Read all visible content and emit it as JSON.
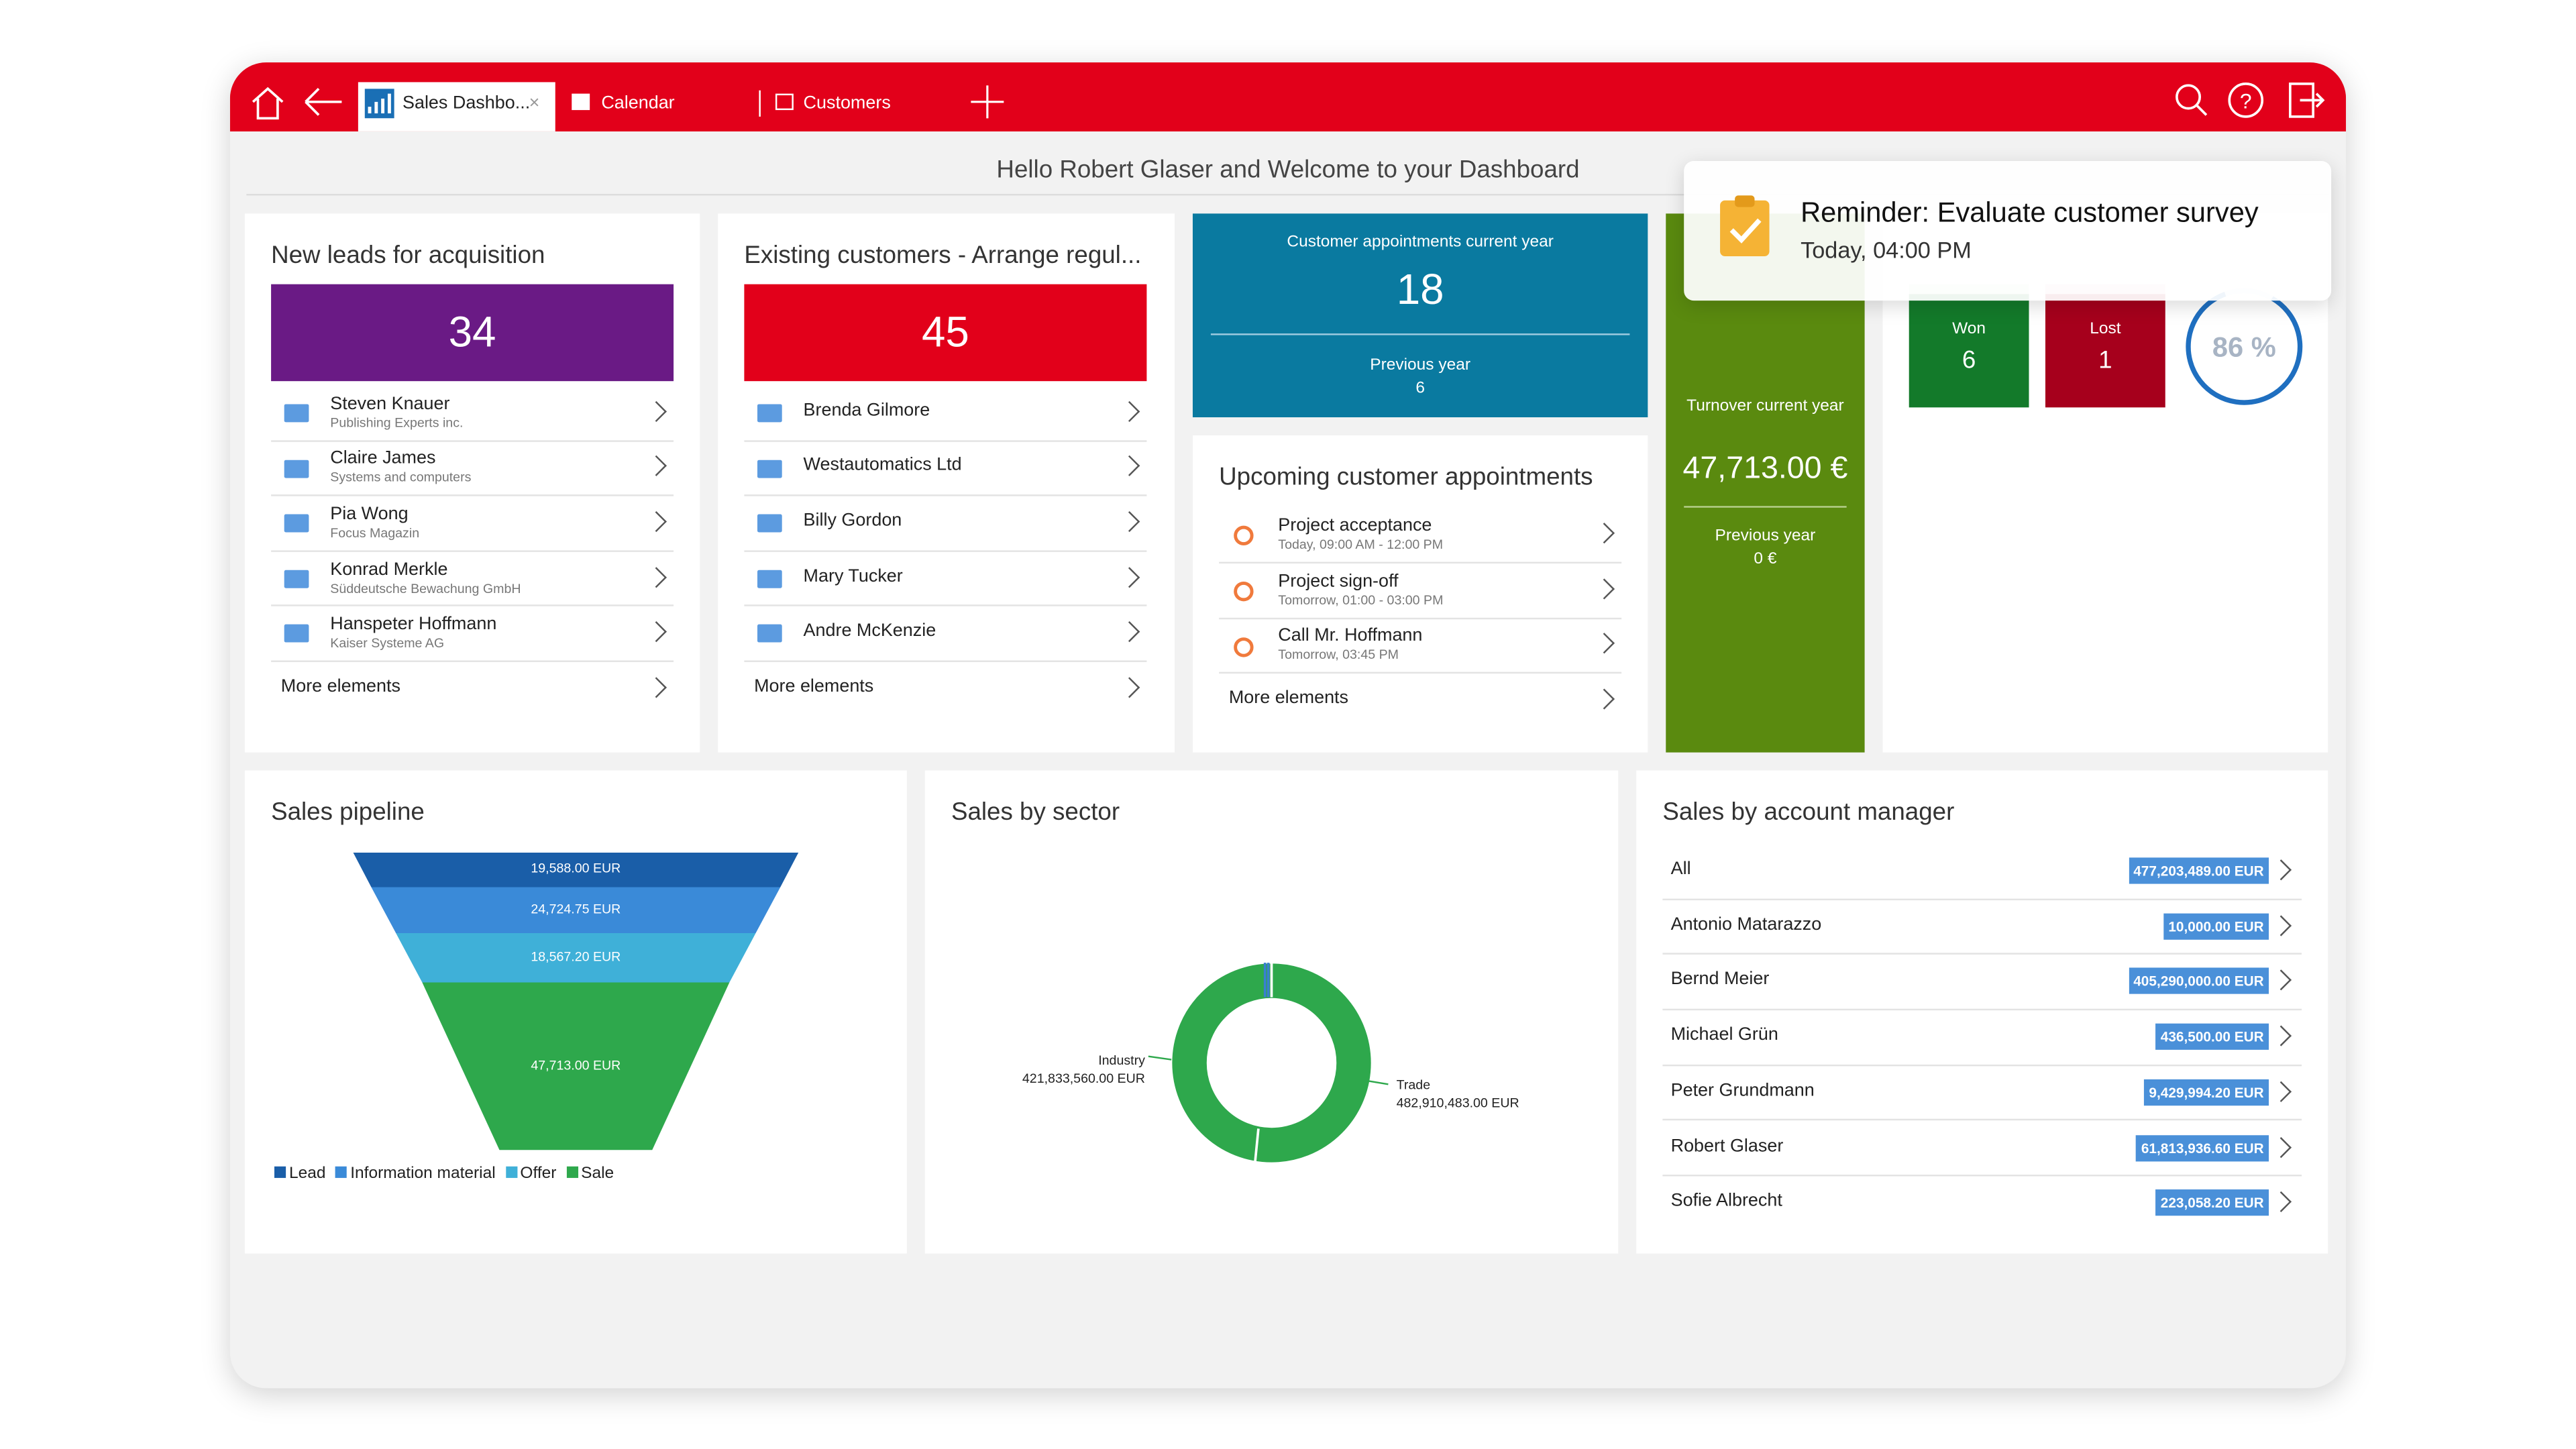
{
  "tabs": [
    "Sales Dashbo...",
    "Calendar",
    "Customers"
  ],
  "welcome": "Hello Robert Glaser and Welcome to your Dashboard",
  "reminder": {
    "title": "Reminder: Evaluate customer survey",
    "time": "Today, 04:00 PM"
  },
  "leads": {
    "title": "New leads for acquisition",
    "count": 34,
    "items": [
      {
        "name": "Steven Knauer",
        "sub": "Publishing Experts inc."
      },
      {
        "name": "Claire James",
        "sub": "Systems and computers"
      },
      {
        "name": "Pia Wong",
        "sub": "Focus Magazin"
      },
      {
        "name": "Konrad Merkle",
        "sub": "Süddeutsche Bewachung GmbH"
      },
      {
        "name": "Hanspeter Hoffmann",
        "sub": "Kaiser Systeme AG"
      }
    ],
    "more": "More elements"
  },
  "customers": {
    "title": "Existing customers - Arrange regul...",
    "count": 45,
    "items": [
      "Brenda Gilmore",
      "Westautomatics Ltd",
      "Billy Gordon",
      "Mary Tucker",
      "Andre McKenzie"
    ],
    "more": "More elements"
  },
  "appointments_kpi": {
    "title": "Customer appointments current year",
    "value": 18,
    "prev_label": "Previous year",
    "prev_value": 6
  },
  "upcoming": {
    "title": "Upcoming customer appointments",
    "items": [
      {
        "name": "Project acceptance",
        "time": "Today, 09:00 AM - 12:00 PM"
      },
      {
        "name": "Project sign-off",
        "time": "Tomorrow, 01:00 - 03:00 PM"
      },
      {
        "name": "Call Mr. Hoffmann",
        "time": "Tomorrow, 03:45 PM"
      }
    ],
    "more": "More elements"
  },
  "turnover": {
    "title": "Turnover current year",
    "value": "47,713.00 €",
    "prev_label": "Previous year",
    "prev_value": "0 €"
  },
  "won_lost": {
    "won_label": "Won",
    "won": 6,
    "lost_label": "Lost",
    "lost": 1,
    "rate": "86 %"
  },
  "pipeline": {
    "title": "Sales pipeline",
    "segments": [
      "19,588.00 EUR",
      "24,724.75 EUR",
      "18,567.20 EUR",
      "47,713.00 EUR"
    ],
    "legend": [
      "Lead",
      "Information material",
      "Offer",
      "Sale"
    ]
  },
  "sector": {
    "title": "Sales by sector",
    "labels": [
      {
        "name": "Industry",
        "value": "421,833,560.00 EUR"
      },
      {
        "name": "Trade",
        "value": "482,910,483.00 EUR"
      }
    ]
  },
  "managers": {
    "title": "Sales by account manager",
    "rows": [
      {
        "name": "All",
        "value": "477,203,489.00 EUR"
      },
      {
        "name": "Antonio Matarazzo",
        "value": "10,000.00 EUR"
      },
      {
        "name": "Bernd Meier",
        "value": "405,290,000.00 EUR"
      },
      {
        "name": "Michael Grün",
        "value": "436,500.00 EUR"
      },
      {
        "name": "Peter Grundmann",
        "value": "9,429,994.20 EUR"
      },
      {
        "name": "Robert Glaser",
        "value": "61,813,936.60 EUR"
      },
      {
        "name": "Sofie Albrecht",
        "value": "223,058.20 EUR"
      }
    ]
  }
}
